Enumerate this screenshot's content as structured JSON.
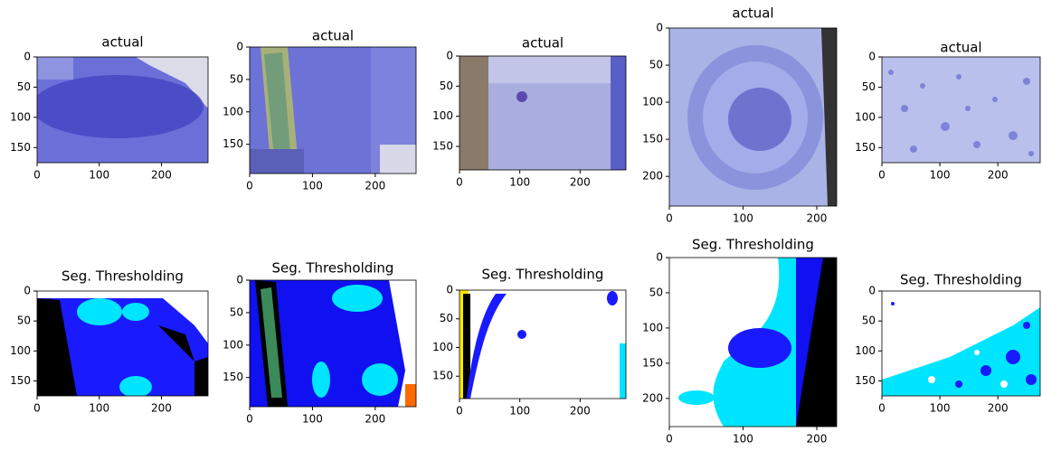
{
  "chart_data": [
    {
      "type": "image",
      "title": "actual",
      "xlim": [
        0,
        275
      ],
      "ylim": [
        175,
        0
      ],
      "xticks": [
        0,
        100,
        200
      ],
      "yticks": [
        0,
        50,
        100,
        150
      ]
    },
    {
      "type": "image",
      "title": "actual",
      "xlim": [
        0,
        265
      ],
      "ylim": [
        195,
        0
      ],
      "xticks": [
        0,
        100,
        200
      ],
      "yticks": [
        0,
        50,
        100,
        150
      ]
    },
    {
      "type": "image",
      "title": "actual",
      "xlim": [
        0,
        276
      ],
      "ylim": [
        189,
        0
      ],
      "xticks": [
        0,
        100,
        200
      ],
      "yticks": [
        0,
        50,
        100,
        150
      ]
    },
    {
      "type": "image",
      "title": "actual",
      "xlim": [
        0,
        227
      ],
      "ylim": [
        240,
        0
      ],
      "xticks": [
        0,
        100,
        200
      ],
      "yticks": [
        0,
        50,
        100,
        150,
        200
      ]
    },
    {
      "type": "image",
      "title": "actual",
      "xlim": [
        0,
        273
      ],
      "ylim": [
        175,
        0
      ],
      "xticks": [
        0,
        100,
        200
      ],
      "yticks": [
        0,
        50,
        100,
        150
      ]
    },
    {
      "type": "image",
      "title": "Seg. Thresholding",
      "xlim": [
        0,
        275
      ],
      "ylim": [
        175,
        0
      ],
      "xticks": [
        0,
        100,
        200
      ],
      "yticks": [
        0,
        50,
        100,
        150
      ]
    },
    {
      "type": "image",
      "title": "Seg. Thresholding",
      "xlim": [
        0,
        265
      ],
      "ylim": [
        195,
        0
      ],
      "xticks": [
        0,
        100,
        200
      ],
      "yticks": [
        0,
        50,
        100,
        150
      ]
    },
    {
      "type": "image",
      "title": "Seg. Thresholding",
      "xlim": [
        0,
        276
      ],
      "ylim": [
        189,
        0
      ],
      "xticks": [
        0,
        100,
        200
      ],
      "yticks": [
        0,
        50,
        100,
        150
      ]
    },
    {
      "type": "image",
      "title": "Seg. Thresholding",
      "xlim": [
        0,
        227
      ],
      "ylim": [
        240,
        0
      ],
      "xticks": [
        0,
        100,
        200
      ],
      "yticks": [
        0,
        50,
        100,
        150,
        200
      ]
    },
    {
      "type": "image",
      "title": "Seg. Thresholding",
      "xlim": [
        0,
        273
      ],
      "ylim": [
        175,
        0
      ],
      "xticks": [
        0,
        100,
        200
      ],
      "yticks": [
        0,
        50,
        100,
        150
      ]
    }
  ]
}
